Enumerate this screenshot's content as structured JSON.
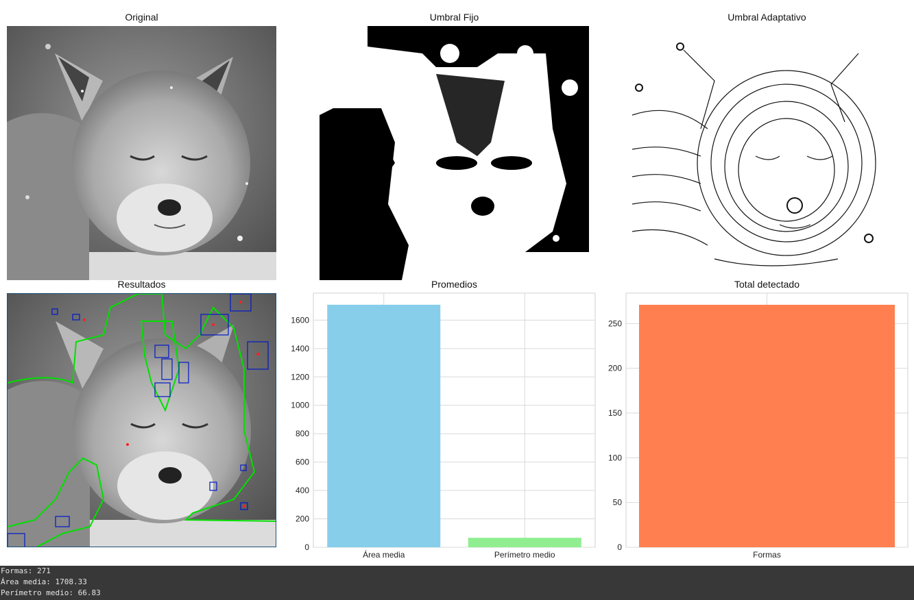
{
  "panels": {
    "original_title": "Original",
    "fixed_title": "Umbral Fijo",
    "adaptive_title": "Umbral Adaptativo",
    "results_title": "Resultados",
    "averages_title": "Promedios",
    "total_title": "Total detectado"
  },
  "chart_data": [
    {
      "type": "bar",
      "title": "Promedios",
      "categories": [
        "Área media",
        "Perímetro medio"
      ],
      "values": [
        1708.33,
        66.83
      ],
      "colors": [
        "#87ceeb",
        "#90ee90"
      ],
      "ylim": [
        0,
        1790
      ],
      "yticks": [
        0,
        200,
        400,
        600,
        800,
        1000,
        1200,
        1400,
        1600
      ],
      "xlabel": "",
      "ylabel": "",
      "grid": true
    },
    {
      "type": "bar",
      "title": "Total detectado",
      "categories": [
        "Formas"
      ],
      "values": [
        271
      ],
      "colors": [
        "#ff7f50"
      ],
      "ylim": [
        0,
        284
      ],
      "yticks": [
        0,
        50,
        100,
        150,
        200,
        250
      ],
      "xlabel": "",
      "ylabel": "",
      "grid": true
    }
  ],
  "console": {
    "line1": "Formas: 271",
    "line2": "Área media: 1708.33",
    "line3": "Perímetro medio: 66.83"
  }
}
